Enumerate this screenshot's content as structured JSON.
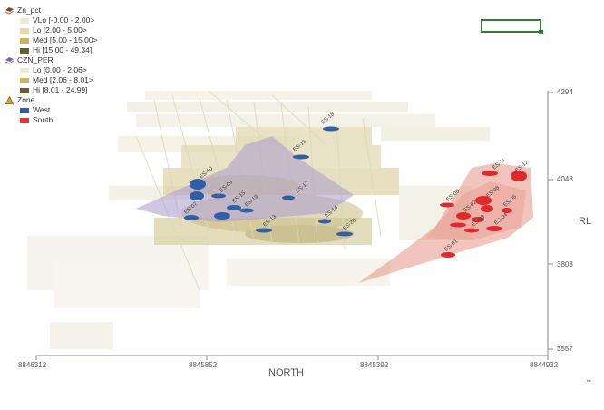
{
  "legend": {
    "groups": [
      {
        "name": "Zn_pct",
        "icon": "layer-icon",
        "items": [
          {
            "label": "VLo  [-0.00 - 2.00>",
            "color": "#eee9d2"
          },
          {
            "label": "Lo  [2.00 - 5.00>",
            "color": "#e6d9a8"
          },
          {
            "label": "Med  [5.00 - 15.00>",
            "color": "#cdb45c"
          },
          {
            "label": "Hi  [15.00 - 49.34]",
            "color": "#6b5b2a"
          }
        ]
      },
      {
        "name": "CZN_PER",
        "icon": "layer-icon",
        "items": [
          {
            "label": "Lo  [0.00 - 2.06>",
            "color": "#eee9d2"
          },
          {
            "label": "Med  [2.06 - 8.01>",
            "color": "#cdb45c"
          },
          {
            "label": "Hi  [8.01 - 24.99]",
            "color": "#6b5b2a"
          }
        ]
      },
      {
        "name": "Zone",
        "icon": "triangle-icon",
        "items": [
          {
            "label": "West",
            "color": "#2f5fa8"
          },
          {
            "label": "South",
            "color": "#d93636"
          }
        ]
      }
    ]
  },
  "axes": {
    "north": {
      "title": "NORTH",
      "ticks": [
        "8846312",
        "8845852",
        "8845392",
        "8844932"
      ]
    },
    "rl": {
      "title": "RL",
      "ticks": [
        "4294",
        "4048",
        "3803",
        "3557"
      ]
    }
  },
  "drillholes_west": [
    "ES-18",
    "ES-16",
    "ES-17",
    "ES-10",
    "ES-09",
    "ES-15",
    "ES-19",
    "ES-14",
    "ES-20",
    "ES-07",
    "ES-13"
  ],
  "drillholes_south": [
    "ES-08",
    "ES-11",
    "ES-06",
    "ES-12",
    "ES-02",
    "ES-05",
    "ES-03",
    "ES-01",
    "ES-04"
  ]
}
